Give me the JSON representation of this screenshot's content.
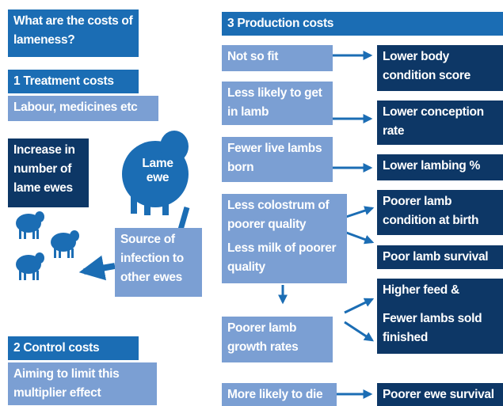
{
  "intro": {
    "title": "What are the costs of lameness?"
  },
  "treatment": {
    "heading": "1 Treatment costs",
    "detail": "Labour, medicines etc"
  },
  "spread": {
    "increase": "Increase in number of lame ewes",
    "lame_ewe": "Lame ewe",
    "source": "Source of infection to other ewes"
  },
  "control": {
    "heading": "2 Control costs",
    "detail": "Aiming to limit this multiplier effect"
  },
  "production": {
    "heading": "3 Production costs",
    "causes": [
      "Not so fit",
      "Less likely to get in lamb",
      "Fewer live lambs born",
      "Less colostrum of poorer quality",
      "Less milk of poorer quality",
      "Poorer lamb growth rates",
      "More likely to die"
    ],
    "effects": [
      "Lower body condition score",
      "Lower conception rate",
      "Lower lambing %",
      "Poorer lamb condition at birth",
      "Poor lamb survival",
      "Higher feed &",
      "Fewer lambs sold finished",
      "Poorer ewe survival"
    ]
  }
}
